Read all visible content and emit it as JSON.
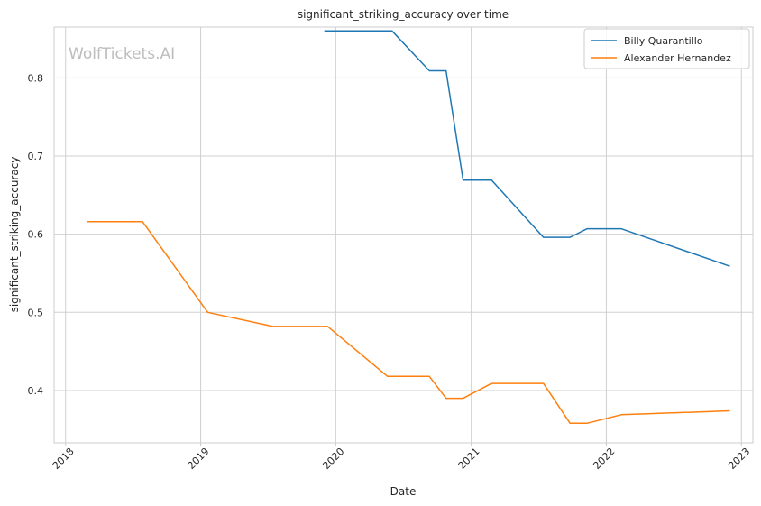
{
  "chart_data": {
    "type": "line",
    "title": "significant_striking_accuracy over time",
    "xlabel": "Date",
    "ylabel": "significant_striking_accuracy",
    "watermark": "WolfTickets.AI",
    "x_ticks": [
      "2018",
      "2019",
      "2020",
      "2021",
      "2022",
      "2023"
    ],
    "y_ticks": [
      "0.4",
      "0.5",
      "0.6",
      "0.7",
      "0.8"
    ],
    "xlim": [
      "2017-12-01",
      "2023-02-01"
    ],
    "ylim": [
      0.333,
      0.865
    ],
    "grid": true,
    "legend_position": "top-right",
    "series": [
      {
        "name": "Billy Quarantillo",
        "color": "#1f77b4",
        "x": [
          "2019-12-01",
          "2020-06-01",
          "2020-09-10",
          "2020-10-25",
          "2020-12-10",
          "2021-02-25",
          "2021-07-15",
          "2021-09-25",
          "2021-11-10",
          "2022-02-10",
          "2022-12-01"
        ],
        "y": [
          0.86,
          0.86,
          0.809,
          0.809,
          0.669,
          0.669,
          0.596,
          0.596,
          0.607,
          0.607,
          0.559
        ]
      },
      {
        "name": "Alexander Hernandez",
        "color": "#ff7f0e",
        "x": [
          "2018-03-01",
          "2018-07-28",
          "2019-01-20",
          "2019-07-15",
          "2019-12-10",
          "2020-05-20",
          "2020-09-10",
          "2020-10-25",
          "2020-12-10",
          "2021-02-25",
          "2021-07-15",
          "2021-09-25",
          "2021-11-10",
          "2022-02-10",
          "2022-12-01"
        ],
        "y": [
          0.616,
          0.616,
          0.5,
          0.482,
          0.482,
          0.418,
          0.418,
          0.39,
          0.39,
          0.409,
          0.409,
          0.358,
          0.358,
          0.369,
          0.374
        ]
      }
    ]
  }
}
